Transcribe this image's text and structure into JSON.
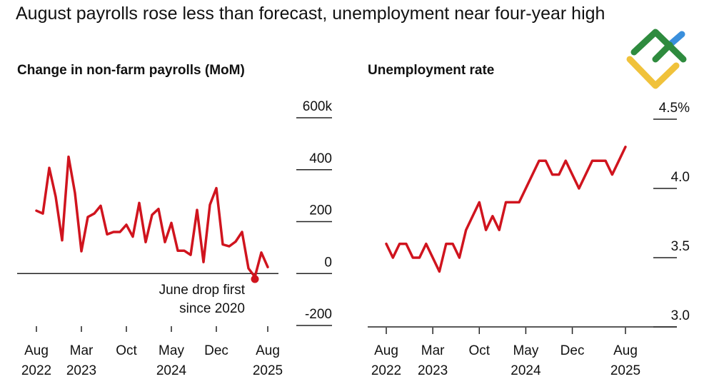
{
  "title": "August payrolls rose less than forecast, unemployment near four-year high",
  "logo": {
    "name": "logo-mark",
    "colors": [
      "#2e8b3e",
      "#f0c23b",
      "#3a8fdc"
    ]
  },
  "chart_data": [
    {
      "type": "line",
      "title": "Change in non-farm payrolls (MoM)",
      "color": "#d0141e",
      "x_start": "2022-08",
      "x_end": "2025-08",
      "frequency": "monthly",
      "values": [
        242,
        231,
        407,
        296,
        128,
        450,
        310,
        86,
        218,
        231,
        261,
        151,
        160,
        160,
        188,
        142,
        272,
        121,
        226,
        249,
        121,
        195,
        88,
        88,
        72,
        245,
        44,
        265,
        329,
        112,
        105,
        123,
        160,
        20,
        -13,
        81,
        25
      ],
      "ylim": [
        -200,
        600
      ],
      "yticks": [
        {
          "value": 600,
          "label": "600k"
        },
        {
          "value": 400,
          "label": "400"
        },
        {
          "value": 200,
          "label": "200"
        },
        {
          "value": 0,
          "label": "0"
        },
        {
          "value": -200,
          "label": "-200"
        }
      ],
      "xticks": [
        {
          "index": 0,
          "label1": "Aug",
          "label2": "2022"
        },
        {
          "index": 7,
          "label1": "Mar",
          "label2": "2023"
        },
        {
          "index": 14,
          "label1": "Oct",
          "label2": ""
        },
        {
          "index": 21,
          "label1": "May",
          "label2": "2024"
        },
        {
          "index": 28,
          "label1": "Dec",
          "label2": ""
        },
        {
          "index": 36,
          "label1": "Aug",
          "label2": "2025"
        }
      ],
      "annotation": {
        "index": 34,
        "line1": "June drop first",
        "line2": "since 2020"
      }
    },
    {
      "type": "line",
      "title": "Unemployment rate",
      "color": "#d0141e",
      "x_start": "2022-08",
      "x_end": "2025-08",
      "frequency": "monthly",
      "values": [
        3.6,
        3.5,
        3.6,
        3.6,
        3.5,
        3.5,
        3.6,
        3.5,
        3.4,
        3.6,
        3.6,
        3.5,
        3.7,
        3.8,
        3.9,
        3.7,
        3.8,
        3.7,
        3.9,
        3.9,
        3.9,
        4.0,
        4.1,
        4.2,
        4.2,
        4.1,
        4.1,
        4.2,
        4.1,
        4.0,
        4.1,
        4.2,
        4.2,
        4.2,
        4.1,
        4.2,
        4.3
      ],
      "ylim": [
        3.0,
        4.5
      ],
      "yticks": [
        {
          "value": 4.5,
          "label": "4.5%"
        },
        {
          "value": 4.0,
          "label": "4.0"
        },
        {
          "value": 3.5,
          "label": "3.5"
        },
        {
          "value": 3.0,
          "label": "3.0"
        }
      ],
      "xticks": [
        {
          "index": 0,
          "label1": "Aug",
          "label2": "2022"
        },
        {
          "index": 7,
          "label1": "Mar",
          "label2": "2023"
        },
        {
          "index": 14,
          "label1": "Oct",
          "label2": ""
        },
        {
          "index": 21,
          "label1": "May",
          "label2": "2024"
        },
        {
          "index": 28,
          "label1": "Dec",
          "label2": ""
        },
        {
          "index": 36,
          "label1": "Aug",
          "label2": "2025"
        }
      ]
    }
  ]
}
